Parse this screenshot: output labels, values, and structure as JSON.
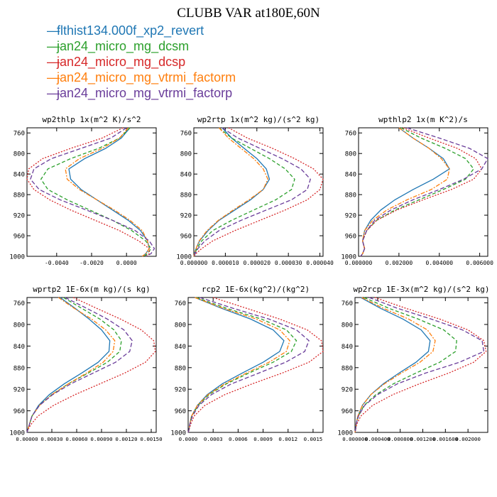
{
  "title": "CLUBB VAR at180E,60N",
  "legend": [
    {
      "name": "flthist134.000f_xp2_revert",
      "color": "#1f77b4"
    },
    {
      "name": "jan24_micro_mg_dcsm",
      "color": "#2ca02c"
    },
    {
      "name": "jan24_micro_mg_dcsp",
      "color": "#d62728"
    },
    {
      "name": "jan24_micro_mg_vtrmi_factorm",
      "color": "#ff7f0e"
    },
    {
      "name": "jan24_micro_mg_vtrmi_factorp",
      "color": "#6a3d9a"
    }
  ],
  "chart_data": [
    {
      "type": "line",
      "title": "wp2thlp   1x(m^2 K)/s^2",
      "xlim": [
        -0.0057,
        0.0017
      ],
      "ylim": [
        750,
        1000
      ],
      "y_inverted": true,
      "xticks": [
        -0.004,
        -0.002,
        0.0
      ],
      "xticklabels": [
        "-0.0040",
        "-0.0020",
        "0.0000"
      ],
      "yticks": [
        760,
        800,
        840,
        880,
        920,
        960,
        1000
      ],
      "x_unit_note": "",
      "y": [
        750,
        770,
        790,
        810,
        830,
        850,
        870,
        890,
        910,
        930,
        950,
        970,
        985,
        995,
        1000
      ],
      "series": [
        {
          "values": [
            0.0002,
            -0.0003,
            -0.0012,
            -0.0024,
            -0.0033,
            -0.0032,
            -0.0026,
            -0.0017,
            -0.0008,
            0.0001,
            0.0008,
            0.0012,
            0.0013,
            0.0011,
            0.0009
          ]
        },
        {
          "values": [
            0.0002,
            -0.0004,
            -0.0016,
            -0.0032,
            -0.0045,
            -0.0049,
            -0.0045,
            -0.0034,
            -0.0021,
            -0.0008,
            0.0003,
            0.0011,
            0.0014,
            0.0012,
            0.001
          ]
        },
        {
          "values": [
            -0.0002,
            -0.0014,
            -0.0032,
            -0.0048,
            -0.0056,
            -0.0057,
            -0.0053,
            -0.0044,
            -0.0032,
            -0.0018,
            -0.0004,
            0.0007,
            0.0013,
            0.0013,
            0.0011
          ]
        },
        {
          "values": [
            0.0001,
            -0.0004,
            -0.0014,
            -0.0027,
            -0.0035,
            -0.0034,
            -0.0027,
            -0.0017,
            -0.0007,
            0.0002,
            0.0009,
            0.0012,
            0.0013,
            0.0011,
            0.0009
          ]
        },
        {
          "values": [
            0.0,
            -0.0009,
            -0.0026,
            -0.0043,
            -0.0053,
            -0.0055,
            -0.005,
            -0.0038,
            -0.0023,
            -0.0008,
            0.0005,
            0.0013,
            0.0016,
            0.0014,
            0.0011
          ]
        }
      ]
    },
    {
      "type": "line",
      "title": "wp2rtp   1x(m^2 kg)/(s^2 kg)",
      "xlim": [
        0,
        4.1e-05
      ],
      "ylim": [
        750,
        1000
      ],
      "y_inverted": true,
      "xticks": [
        0,
        1e-05,
        2e-05,
        3e-05,
        4e-05
      ],
      "xticklabels": [
        "0.000000",
        "0.000010",
        "0.000020",
        "0.000030",
        "0.000040"
      ],
      "xticklabel_compact": "0.0000000.0000100.0000200.0000300.000040",
      "yticks": [
        760,
        800,
        840,
        880,
        920,
        960,
        1000
      ],
      "y": [
        750,
        770,
        790,
        810,
        830,
        850,
        870,
        890,
        910,
        930,
        950,
        970,
        985,
        995,
        1000
      ],
      "series": [
        {
          "values": [
            9e-06,
            1.2e-05,
            1.6e-05,
            2e-05,
            2.3e-05,
            2.4e-05,
            2.2e-05,
            1.8e-05,
            1.3e-05,
            8e-06,
            4.5e-06,
            1.8e-06,
            7e-07,
            2e-07,
            0.0
          ]
        },
        {
          "values": [
            8e-06,
            1.2e-05,
            1.8e-05,
            2.4e-05,
            2.9e-05,
            3.2e-05,
            3.1e-05,
            2.6e-05,
            1.9e-05,
            1.2e-05,
            6e-06,
            2.5e-06,
            1e-06,
            3e-07,
            0.0
          ]
        },
        {
          "values": [
            1.1e-05,
            1.7e-05,
            2.5e-05,
            3.2e-05,
            3.8e-05,
            4.1e-05,
            4e-05,
            3.6e-05,
            2.9e-05,
            2.1e-05,
            1.3e-05,
            6e-06,
            2.5e-06,
            6e-07,
            0.0
          ]
        },
        {
          "values": [
            8e-06,
            1.1e-05,
            1.5e-05,
            1.9e-05,
            2.2e-05,
            2.35e-05,
            2.2e-05,
            1.75e-05,
            1.25e-05,
            7.8e-06,
            4.2e-06,
            1.7e-06,
            7e-07,
            2e-07,
            0.0
          ]
        },
        {
          "values": [
            9e-06,
            1.4e-05,
            2.1e-05,
            2.8e-05,
            3.4e-05,
            3.7e-05,
            3.6e-05,
            3.1e-05,
            2.3e-05,
            1.5e-05,
            8e-06,
            3.5e-06,
            1.3e-06,
            4e-07,
            0.0
          ]
        }
      ]
    },
    {
      "type": "line",
      "title": "wpthlp2   1x(m K^2)/s",
      "xlim": [
        0,
        0.0064
      ],
      "ylim": [
        750,
        1000
      ],
      "y_inverted": true,
      "xticks": [
        0,
        0.002,
        0.004,
        0.006
      ],
      "xticklabels": [
        "0.000000",
        "0.002000",
        "0.004000",
        "0.006000"
      ],
      "yticks": [
        760,
        800,
        840,
        880,
        920,
        960,
        1000
      ],
      "y": [
        750,
        770,
        790,
        810,
        830,
        850,
        870,
        890,
        910,
        930,
        950,
        970,
        985,
        995,
        1000
      ],
      "series": [
        {
          "values": [
            0.002,
            0.0027,
            0.0035,
            0.0042,
            0.0045,
            0.0037,
            0.0027,
            0.0018,
            0.0011,
            0.0006,
            0.0003,
            0.0002,
            0.0003,
            0.0002,
            0.0001
          ]
        },
        {
          "values": [
            0.0021,
            0.0031,
            0.0043,
            0.0053,
            0.0057,
            0.0053,
            0.0042,
            0.003,
            0.0018,
            0.0009,
            0.0004,
            0.0002,
            0.0003,
            0.0002,
            0.0001
          ]
        },
        {
          "values": [
            0.0022,
            0.0035,
            0.0049,
            0.0058,
            0.0061,
            0.0057,
            0.0046,
            0.0032,
            0.0019,
            0.0009,
            0.0004,
            0.0002,
            0.0003,
            0.0002,
            0.0001
          ]
        },
        {
          "values": [
            0.002,
            0.0027,
            0.0035,
            0.0041,
            0.0045,
            0.0044,
            0.0036,
            0.0024,
            0.0014,
            0.0007,
            0.0003,
            0.0002,
            0.0003,
            0.0002,
            0.0001
          ]
        },
        {
          "values": [
            0.0024,
            0.004,
            0.0055,
            0.0064,
            0.0061,
            0.0052,
            0.004,
            0.0027,
            0.0016,
            0.0008,
            0.0004,
            0.0002,
            0.0003,
            0.0002,
            0.0001
          ]
        }
      ]
    },
    {
      "type": "line",
      "title": "wprtp2   1E-6x(m kg)/(s kg)",
      "xlim": [
        0,
        0.00156
      ],
      "ylim": [
        750,
        1000
      ],
      "y_inverted": true,
      "xticks": [
        0,
        0.0003,
        0.0006,
        0.0009,
        0.0012,
        0.0015
      ],
      "xticklabels": [
        "0.00000",
        "0.00030",
        "0.00060",
        "0.00090",
        "0.00120",
        "0.00150"
      ],
      "yticks": [
        760,
        800,
        840,
        880,
        920,
        960,
        1000
      ],
      "y": [
        750,
        770,
        790,
        810,
        830,
        850,
        870,
        890,
        910,
        930,
        950,
        970,
        985,
        995,
        1000
      ],
      "series": [
        {
          "values": [
            0.0004,
            0.00058,
            0.00075,
            0.0009,
            0.001,
            0.00099,
            0.00086,
            0.00066,
            0.00045,
            0.00027,
            0.00014,
            6e-05,
            3e-05,
            1e-05,
            0.0
          ]
        },
        {
          "values": [
            0.00044,
            0.00066,
            0.00088,
            0.00105,
            0.00114,
            0.00112,
            0.00097,
            0.00074,
            0.0005,
            0.0003,
            0.00015,
            6e-05,
            3e-05,
            1e-05,
            0.0
          ]
        },
        {
          "values": [
            0.00056,
            0.00084,
            0.00113,
            0.00138,
            0.00153,
            0.00155,
            0.00143,
            0.00118,
            0.00088,
            0.00058,
            0.00032,
            0.00013,
            5e-05,
            1e-05,
            0.0
          ]
        },
        {
          "values": [
            0.00038,
            0.00057,
            0.00078,
            0.00095,
            0.00106,
            0.00104,
            0.00092,
            0.00072,
            0.0005,
            0.0003,
            0.00015,
            6e-05,
            3e-05,
            1e-05,
            0.0
          ]
        },
        {
          "values": [
            0.00046,
            0.00072,
            0.00097,
            0.00117,
            0.00127,
            0.00124,
            0.00107,
            0.0008,
            0.00053,
            0.00031,
            0.00015,
            6e-05,
            3e-05,
            1e-05,
            0.0
          ]
        }
      ]
    },
    {
      "type": "line",
      "title": "rcp2   1E-6x(kg^2)/(kg^2)",
      "xlim": [
        0,
        0.00162
      ],
      "ylim": [
        750,
        1000
      ],
      "y_inverted": true,
      "xticks": [
        0,
        0.0003,
        0.0006,
        0.0009,
        0.0012,
        0.0015
      ],
      "xticklabels": [
        "0.0000",
        "0.0003",
        "0.0006",
        "0.0009",
        "0.0012",
        "0.0015"
      ],
      "yticks": [
        760,
        800,
        840,
        880,
        920,
        960,
        1000
      ],
      "y": [
        750,
        770,
        790,
        810,
        830,
        850,
        870,
        890,
        910,
        930,
        950,
        970,
        985,
        995,
        1000
      ],
      "series": [
        {
          "values": [
            8e-05,
            0.0004,
            0.00075,
            0.00102,
            0.00115,
            0.0011,
            0.0009,
            0.00065,
            0.00041,
            0.00023,
            0.00011,
            4e-05,
            2e-05,
            1e-05,
            0.0
          ]
        },
        {
          "values": [
            0.0001,
            0.00046,
            0.00088,
            0.00118,
            0.0013,
            0.00124,
            0.00102,
            0.00073,
            0.00046,
            0.00025,
            0.00012,
            4e-05,
            2e-05,
            1e-05,
            0.0
          ]
        },
        {
          "values": [
            0.0003,
            0.0007,
            0.0011,
            0.00143,
            0.0016,
            0.00162,
            0.00145,
            0.00113,
            0.00077,
            0.00044,
            0.0002,
            7e-05,
            3e-05,
            1e-05,
            0.0
          ]
        },
        {
          "values": [
            8e-05,
            0.00042,
            0.00082,
            0.0011,
            0.00122,
            0.00118,
            0.00097,
            0.0007,
            0.00044,
            0.00024,
            0.00011,
            4e-05,
            2e-05,
            1e-05,
            0.0
          ]
        },
        {
          "values": [
            0.00014,
            0.00054,
            0.00097,
            0.0013,
            0.00145,
            0.0014,
            0.00117,
            0.00085,
            0.00052,
            0.00028,
            0.00013,
            5e-05,
            2e-05,
            1e-05,
            0.0
          ]
        }
      ]
    },
    {
      "type": "line",
      "title": "wp2rcp   1E-3x(m^2 kg)/(s^2 kg)",
      "xlim": [
        0,
        0.00235
      ],
      "ylim": [
        750,
        1000
      ],
      "y_inverted": true,
      "xticks": [
        0,
        0.0004,
        0.0008,
        0.0012,
        0.0016,
        0.002
      ],
      "xticklabels": [
        "0.000000",
        "0.000400",
        "0.000800",
        "0.001200",
        "0.001600",
        "0.002000"
      ],
      "xticklabel_compact": "0.0000000.0004000.0008000.0012000.0016000.002000",
      "yticks": [
        760,
        800,
        840,
        880,
        920,
        960,
        1000
      ],
      "y": [
        750,
        770,
        790,
        810,
        830,
        850,
        870,
        890,
        910,
        930,
        950,
        970,
        985,
        995,
        1000
      ],
      "series": [
        {
          "values": [
            0.0001,
            0.00045,
            0.00085,
            0.00117,
            0.00133,
            0.0013,
            0.00108,
            0.00078,
            0.0005,
            0.00028,
            0.00013,
            5e-05,
            2e-05,
            1e-05,
            0.0
          ]
        },
        {
          "values": [
            0.00016,
            0.0006,
            0.00112,
            0.00157,
            0.0018,
            0.00178,
            0.0015,
            0.00108,
            0.00068,
            0.00037,
            0.00016,
            6e-05,
            2e-05,
            1e-05,
            0.0
          ]
        },
        {
          "values": [
            0.00035,
            0.0009,
            0.0015,
            0.002,
            0.00228,
            0.00232,
            0.0021,
            0.00166,
            0.00114,
            0.00067,
            0.00031,
            0.0001,
            3e-05,
            1e-05,
            0.0
          ]
        },
        {
          "values": [
            0.00012,
            0.0005,
            0.00095,
            0.00128,
            0.00142,
            0.00138,
            0.00115,
            0.00082,
            0.00052,
            0.00028,
            0.00013,
            5e-05,
            2e-05,
            1e-05,
            0.0
          ]
        },
        {
          "values": [
            0.00025,
            0.00075,
            0.00135,
            0.0019,
            0.00225,
            0.00228,
            0.00185,
            0.00125,
            0.00075,
            0.0004,
            0.00017,
            6e-05,
            2e-05,
            1e-05,
            0.0
          ]
        }
      ]
    }
  ]
}
